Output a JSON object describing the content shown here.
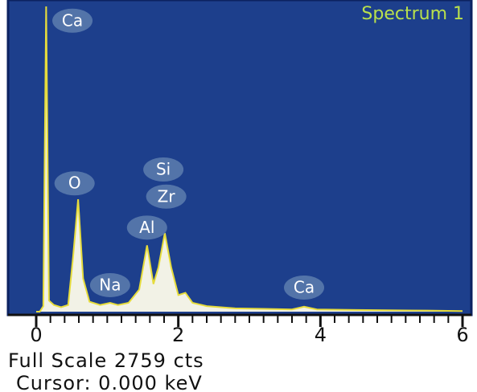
{
  "chart_data": {
    "type": "area",
    "title": "Spectrum 1",
    "x": [
      0,
      0.05,
      0.1,
      0.14,
      0.18,
      0.25,
      0.35,
      0.45,
      0.52,
      0.59,
      0.66,
      0.75,
      0.9,
      1.04,
      1.15,
      1.3,
      1.45,
      1.56,
      1.65,
      1.72,
      1.81,
      1.9,
      2.0,
      2.1,
      2.2,
      2.4,
      2.8,
      3.2,
      3.6,
      3.77,
      3.95,
      4.5,
      5.5,
      6
    ],
    "values": [
      0,
      0,
      50,
      2759,
      100,
      60,
      40,
      60,
      500,
      1016,
      300,
      90,
      60,
      80,
      60,
      80,
      200,
      600,
      250,
      400,
      710,
      400,
      150,
      170,
      80,
      50,
      30,
      25,
      20,
      45,
      20,
      15,
      10,
      5
    ],
    "fill": "#f2f2e6",
    "color": "#e6dc3c",
    "background": "#1d3f8c",
    "title_color": "#b9e04c",
    "xlim": [
      0,
      6
    ],
    "ylim": [
      0,
      2759
    ],
    "xticks": [
      0,
      2,
      4,
      6
    ],
    "xminorticks": [
      0.2,
      0.4,
      0.6,
      0.8,
      1,
      1.2,
      1.4,
      1.6,
      1.8,
      2.2,
      2.4,
      2.6,
      2.8,
      3,
      3.2,
      3.4,
      3.6,
      3.8,
      4.2,
      4.4,
      4.6,
      4.8,
      5,
      5.2,
      5.4,
      5.6,
      5.8
    ],
    "annotations": [
      {
        "text": "Ca",
        "x": 0.51,
        "y": 2630
      },
      {
        "text": "O",
        "x": 0.54,
        "y": 1160
      },
      {
        "text": "Si",
        "x": 1.79,
        "y": 1285
      },
      {
        "text": "Zr",
        "x": 1.83,
        "y": 1040
      },
      {
        "text": "Al",
        "x": 1.56,
        "y": 760
      },
      {
        "text": "Na",
        "x": 1.04,
        "y": 240
      },
      {
        "text": "Ca",
        "x": 3.77,
        "y": 218
      }
    ],
    "footer": [
      "Full Scale 2759 cts",
      "Cursor: 0.000 keV"
    ]
  }
}
